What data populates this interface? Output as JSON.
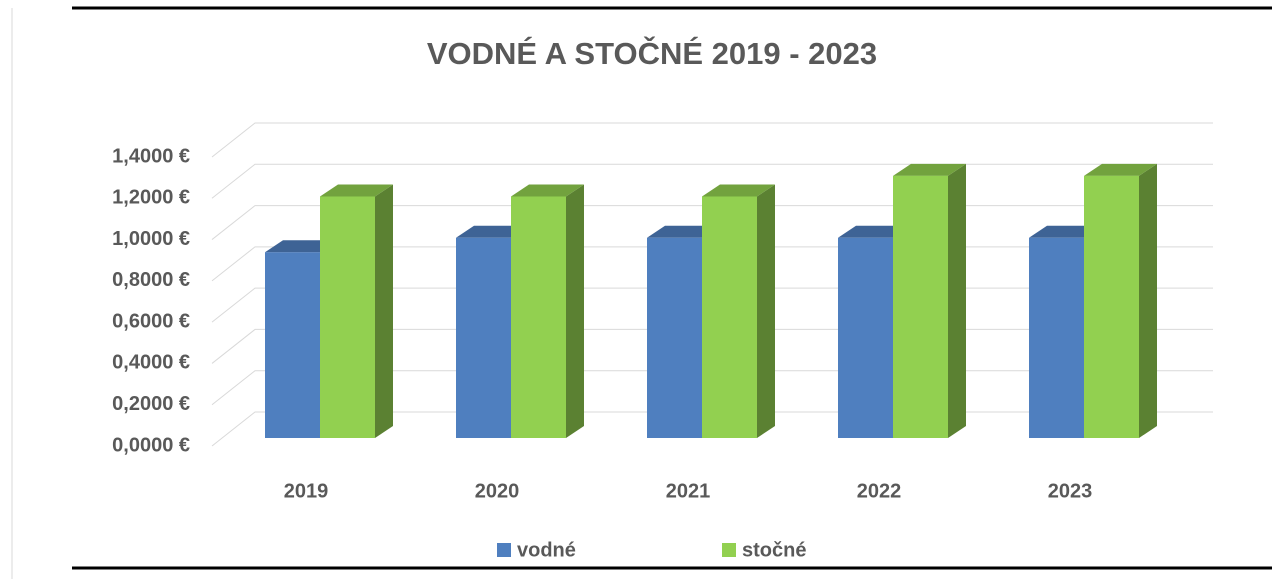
{
  "chart_data": {
    "type": "bar3d",
    "title": "VODNÉ  A  STOČNÉ 2019 - 2023",
    "categories": [
      "2019",
      "2020",
      "2021",
      "2022",
      "2023"
    ],
    "series": [
      {
        "name": "vodné",
        "color": "#4f7fbf",
        "values": [
          0.9,
          0.97,
          0.97,
          0.97,
          0.97
        ]
      },
      {
        "name": "stočné",
        "color": "#92d050",
        "values": [
          1.17,
          1.17,
          1.17,
          1.27,
          1.27
        ]
      }
    ],
    "ylim": [
      0,
      1.4
    ],
    "yticks": [
      {
        "value": 0,
        "label": "0,0000 €"
      },
      {
        "value": 0.2,
        "label": "0,2000 €"
      },
      {
        "value": 0.4,
        "label": "0,4000 €"
      },
      {
        "value": 0.6,
        "label": "0,6000 €"
      },
      {
        "value": 0.8,
        "label": "0,8000 €"
      },
      {
        "value": 1.0,
        "label": "1,0000 €"
      },
      {
        "value": 1.2,
        "label": "1,2000 €"
      },
      {
        "value": 1.4,
        "label": "1,4000 €"
      }
    ],
    "grid": true,
    "legend": "bottom"
  }
}
